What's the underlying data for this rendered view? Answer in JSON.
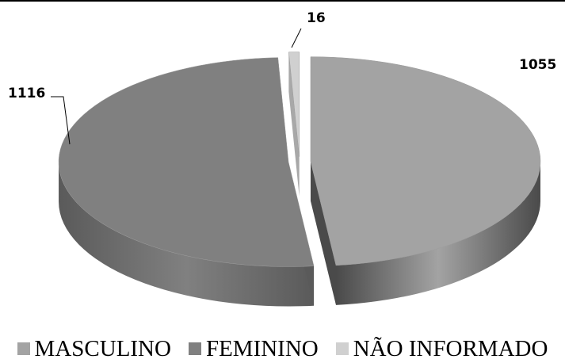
{
  "chart_data": {
    "type": "pie",
    "categories": [
      "MASCULINO",
      "FEMININO",
      "NÃO INFORMADO"
    ],
    "values": [
      1055,
      1116,
      16
    ],
    "data_labels": [
      "1055",
      "1116",
      "16"
    ],
    "colors": [
      "#a3a3a3",
      "#808080",
      "#d0d0d0"
    ],
    "side_colors": [
      "#4a4a4a",
      "#5a5a5a",
      "#a8a8a8"
    ],
    "style": "3d-exploded",
    "legend_position": "bottom"
  },
  "legend": {
    "items": [
      {
        "label": "MASCULINO",
        "color": "#a3a3a3"
      },
      {
        "label": "FEMININO",
        "color": "#808080"
      },
      {
        "label": "NÃO INFORMADO",
        "color": "#d0d0d0"
      }
    ]
  }
}
